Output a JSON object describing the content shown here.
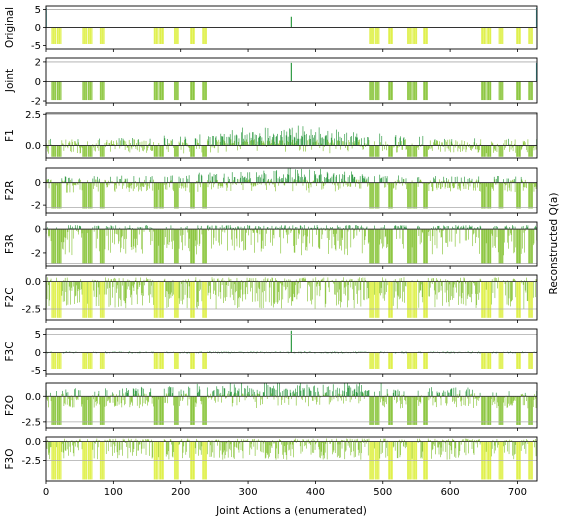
{
  "figure": {
    "xlabel": "Joint Actions a (enumerated)",
    "ylabel_right": "Reconstructed Q(a)",
    "x_ticks": [
      0,
      100,
      200,
      300,
      400,
      500,
      600,
      700
    ],
    "xlim": [
      0,
      729
    ],
    "colors": {
      "dark_bar": "#2f9a43",
      "mid_bar": "#8cc63f",
      "light_bar": "#dff04a",
      "axis": "#000000",
      "ref_line": "#aaaaaa"
    }
  },
  "chart_data": [
    {
      "type": "bar",
      "panel": "Original",
      "ylim": [
        -6,
        6
      ],
      "yticks": [
        -5,
        0,
        5
      ],
      "ytick_labels": [
        "-5",
        "0",
        "5"
      ],
      "max_line": 5.0,
      "summary": "Mostly zero; isolated bar at a=364 reaching ~3; strong spikes at a=0 and a=728 (~5); clusters of yellow negative bars reaching about -5.",
      "spikes": [
        {
          "x": 0,
          "y": 5.5
        },
        {
          "x": 364,
          "y": 3.0
        },
        {
          "x": 728,
          "y": 5.5
        }
      ]
    },
    {
      "type": "bar",
      "panel": "Joint",
      "ylim": [
        -2.2,
        2.4
      ],
      "yticks": [
        -2,
        0,
        2
      ],
      "ytick_labels": [
        "-2",
        "0",
        "2"
      ],
      "max_line": 2.0,
      "summary": "Mostly zero; spike at a=364 (~1.9); clusters of green negative bars down to about -2.",
      "spikes": [
        {
          "x": 364,
          "y": 1.9
        },
        {
          "x": 728,
          "y": 1.9
        }
      ]
    },
    {
      "type": "bar",
      "panel": "F1",
      "ylim": [
        -1.0,
        2.6
      ],
      "yticks": [
        0.0,
        2.5
      ],
      "ytick_labels": [
        "0.0",
        "2.5"
      ],
      "max_line": 2.5,
      "summary": "Dense bars; positive peaks up to ~2 near a=364, negatives down to about -1."
    },
    {
      "type": "bar",
      "panel": "F2R",
      "ylim": [
        -2.7,
        1.3
      ],
      "yticks": [
        -2,
        0
      ],
      "ytick_labels": [
        "-2",
        "0"
      ],
      "max_line": -2.2,
      "summary": "Dense bars; positive up to ~0.9, negative down to about -2.3."
    },
    {
      "type": "bar",
      "panel": "F3R",
      "ylim": [
        -3.1,
        0.6
      ],
      "yticks": [
        -2,
        0
      ],
      "ytick_labels": [
        "-2",
        "0"
      ],
      "max_line": -2.9,
      "summary": "Mostly negative bars down to about -3; small positive values near 0.3."
    },
    {
      "type": "bar",
      "panel": "F2C",
      "ylim": [
        -3.5,
        0.6
      ],
      "yticks": [
        -2.5,
        0.0
      ],
      "ytick_labels": [
        "-2.5",
        "0.0"
      ],
      "max_line": -2.5,
      "summary": "Mostly negative bars; yellow bars down to about -3.3."
    },
    {
      "type": "bar",
      "panel": "F3C",
      "ylim": [
        -6,
        6.5
      ],
      "yticks": [
        -5,
        0,
        5
      ],
      "ytick_labels": [
        "-5",
        "0",
        "5"
      ],
      "max_line": 5.0,
      "summary": "Near-zero bars with spike at a=364 (~6); yellow negatives down to about -5.",
      "spikes": [
        {
          "x": 364,
          "y": 6.0
        }
      ]
    },
    {
      "type": "bar",
      "panel": "F2O",
      "ylim": [
        -3.1,
        1.3
      ],
      "yticks": [
        -2.5,
        0.0
      ],
      "ytick_labels": [
        "-2.5",
        "0.0"
      ],
      "max_line": -2.5,
      "summary": "Dense bars; positive up to ~1 around a=350, negative to about -2.8."
    },
    {
      "type": "bar",
      "panel": "F3O",
      "ylim": [
        -5.2,
        0.6
      ],
      "yticks": [
        -2.5,
        0.0
      ],
      "ytick_labels": [
        "-2.5",
        "0.0"
      ],
      "max_line": -2.5,
      "summary": "Mostly negative bars; yellow bars down to about -5."
    }
  ]
}
